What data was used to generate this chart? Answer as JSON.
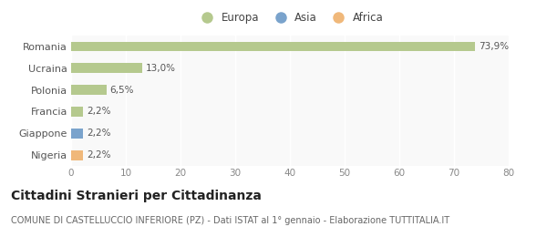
{
  "categories": [
    "Nigeria",
    "Giappone",
    "Francia",
    "Polonia",
    "Ucraina",
    "Romania"
  ],
  "values": [
    2.2,
    2.2,
    2.2,
    6.5,
    13.0,
    73.9
  ],
  "labels": [
    "2,2%",
    "2,2%",
    "2,2%",
    "6,5%",
    "13,0%",
    "73,9%"
  ],
  "bar_colors": [
    "#f0b87a",
    "#7aa3cc",
    "#b5c98e",
    "#b5c98e",
    "#b5c98e",
    "#b5c98e"
  ],
  "legend_items": [
    {
      "label": "Europa",
      "color": "#b5c98e"
    },
    {
      "label": "Asia",
      "color": "#7aa3cc"
    },
    {
      "label": "Africa",
      "color": "#f0b87a"
    }
  ],
  "xlim": [
    0,
    80
  ],
  "xticks": [
    0,
    10,
    20,
    30,
    40,
    50,
    60,
    70,
    80
  ],
  "title": "Cittadini Stranieri per Cittadinanza",
  "subtitle": "COMUNE DI CASTELLUCCIO INFERIORE (PZ) - Dati ISTAT al 1° gennaio - Elaborazione TUTTITALIA.IT",
  "background_color": "#ffffff",
  "plot_bg_color": "#f9f9f9",
  "grid_color": "#ffffff",
  "title_fontsize": 10,
  "subtitle_fontsize": 7,
  "bar_label_fontsize": 7.5,
  "tick_fontsize": 7.5,
  "legend_fontsize": 8.5,
  "ytick_fontsize": 8
}
